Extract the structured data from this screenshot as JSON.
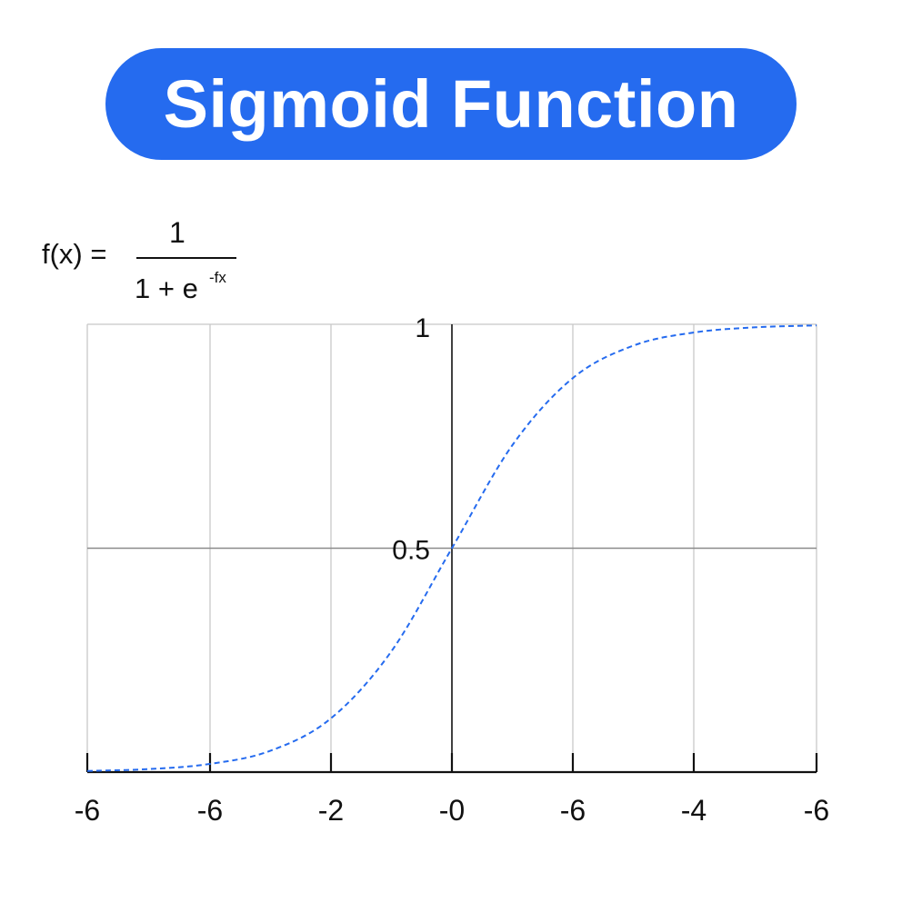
{
  "title": "Sigmoid Function",
  "formula": {
    "lhs": "f(x) =",
    "numerator": "1",
    "denominator": "1 + e",
    "exponent": "-fx"
  },
  "colors": {
    "accent": "#256BEF",
    "curve": "#256BEF",
    "grid": "#C8C8C8",
    "axis": "#111111"
  },
  "chart_data": {
    "type": "line",
    "title": "Sigmoid Function",
    "xlabel": "",
    "ylabel": "",
    "xlim": [
      -6,
      6
    ],
    "ylim": [
      0,
      1
    ],
    "x_tick_labels": [
      "-6",
      "-6",
      "-2",
      "-0",
      "-6",
      "-4",
      "-6"
    ],
    "y_tick_labels": [
      {
        "value": 0.5,
        "label": "0.5"
      },
      {
        "value": 1,
        "label": "1"
      }
    ],
    "grid": true,
    "line_style": "dashed",
    "series": [
      {
        "x": [
          -6,
          -5,
          -4,
          -3,
          -2,
          -1,
          0,
          1,
          2,
          3,
          4,
          5,
          6
        ],
        "values": [
          0.0025,
          0.0067,
          0.018,
          0.047,
          0.119,
          0.269,
          0.5,
          0.731,
          0.881,
          0.953,
          0.982,
          0.9933,
          0.9975
        ]
      }
    ]
  }
}
